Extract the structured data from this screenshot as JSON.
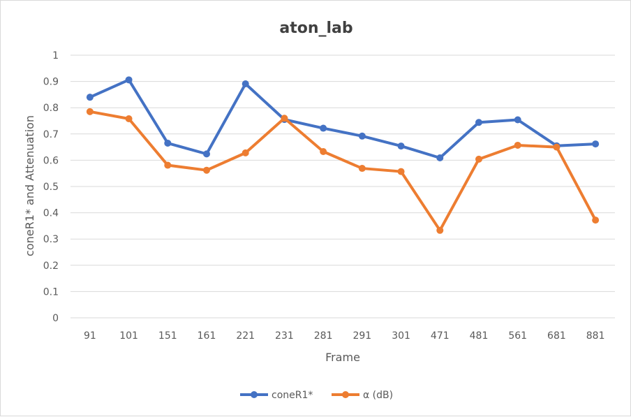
{
  "chart_data": {
    "type": "line",
    "title": "aton_lab",
    "xlabel": "Frame",
    "ylabel": "coneR1* and Attenuation",
    "ylim": [
      0,
      1
    ],
    "yticks": [
      "0",
      "0.1",
      "0.2",
      "0.3",
      "0.4",
      "0.5",
      "0.6",
      "0.7",
      "0.8",
      "0.9",
      "1"
    ],
    "grid": true,
    "legend_position": "bottom",
    "categories": [
      "91",
      "101",
      "151",
      "161",
      "221",
      "231",
      "281",
      "291",
      "301",
      "471",
      "481",
      "561",
      "681",
      "881"
    ],
    "series": [
      {
        "name": "coneR1*",
        "color": "#4472c4",
        "values": [
          0.84,
          0.906,
          0.665,
          0.624,
          0.891,
          0.755,
          0.722,
          0.692,
          0.654,
          0.609,
          0.744,
          0.754,
          0.655,
          0.662
        ]
      },
      {
        "name": "α (dB)",
        "color": "#ed7d31",
        "values": [
          0.785,
          0.758,
          0.581,
          0.562,
          0.628,
          0.76,
          0.633,
          0.569,
          0.557,
          0.333,
          0.604,
          0.657,
          0.65,
          0.372
        ]
      }
    ]
  }
}
